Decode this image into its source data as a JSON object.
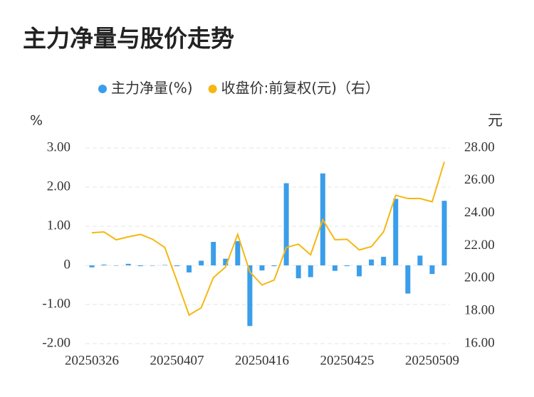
{
  "chart_data": {
    "type": "bar_line",
    "title": "主力净量与股价走势",
    "y_label": "%",
    "y2_label": "元",
    "categories": [
      "20250326",
      null,
      null,
      null,
      null,
      null,
      null,
      "20250407",
      null,
      null,
      null,
      null,
      null,
      null,
      "20250416",
      null,
      null,
      null,
      null,
      null,
      null,
      "20250425",
      null,
      null,
      null,
      null,
      null,
      null,
      "20250509",
      null
    ],
    "series": [
      {
        "name": "主力净量(%)",
        "type": "bar",
        "color": "#3a9eea",
        "values": [
          -0.05,
          0.02,
          0.0,
          0.04,
          -0.02,
          0.0,
          0.01,
          -0.02,
          -0.18,
          0.12,
          0.6,
          0.17,
          0.62,
          -1.55,
          -0.13,
          -0.02,
          2.1,
          -0.33,
          -0.3,
          2.35,
          -0.14,
          -0.02,
          -0.28,
          0.15,
          0.22,
          1.7,
          -0.72,
          0.25,
          -0.22,
          1.65
        ]
      },
      {
        "name": "收盘价:前复权(元)（右）",
        "type": "line",
        "axis": "y2",
        "color": "#f5b710",
        "values": [
          22.8,
          22.85,
          22.37,
          22.55,
          22.7,
          22.4,
          21.9,
          19.85,
          17.75,
          18.2,
          20.05,
          20.7,
          22.7,
          20.4,
          19.6,
          19.9,
          21.9,
          22.1,
          21.45,
          23.6,
          22.37,
          22.4,
          21.75,
          21.95,
          22.85,
          25.1,
          24.9,
          24.9,
          24.7,
          27.15
        ]
      }
    ],
    "ylim": [
      -2,
      3
    ],
    "yticks": [
      {
        "value": -2,
        "label": "-2.00"
      },
      {
        "value": -1,
        "label": "-1.00"
      },
      0,
      {
        "value": 1,
        "label": "1.00"
      },
      {
        "value": 2,
        "label": "2.00"
      },
      {
        "value": 3,
        "label": "3.00"
      }
    ],
    "y2lim": [
      16,
      28
    ],
    "y2ticks": [
      {
        "value": 16,
        "label": "16.00"
      },
      {
        "value": 18,
        "label": "18.00"
      },
      {
        "value": 20,
        "label": "20.00"
      },
      {
        "value": 22,
        "label": "22.00"
      },
      {
        "value": 24,
        "label": "24.00"
      },
      {
        "value": 26,
        "label": "26.00"
      },
      {
        "value": 28,
        "label": "28.00"
      }
    ],
    "grid": true
  }
}
